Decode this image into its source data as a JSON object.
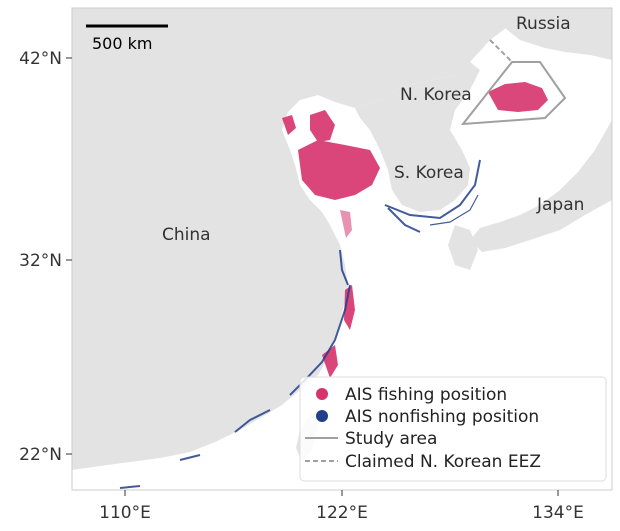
{
  "map": {
    "scale_bar_label": "500 km",
    "labels": {
      "russia": "Russia",
      "north_korea": "N. Korea",
      "south_korea": "S. Korea",
      "japan": "Japan",
      "china": "China"
    },
    "y_ticks": [
      "42°N",
      "32°N",
      "22°N"
    ],
    "x_ticks": [
      "110°E",
      "122°E",
      "134°E"
    ],
    "legend": {
      "placement": "bottom-right",
      "items": [
        {
          "label": "AIS fishing position",
          "marker": "dot",
          "color": "#d6336c"
        },
        {
          "label": "AIS nonfishing position",
          "marker": "dot",
          "color": "#223f8c"
        },
        {
          "label": "Study area",
          "marker": "solid-line",
          "color": "#a0a0a0"
        },
        {
          "label": "Claimed N. Korean EEZ",
          "marker": "dashed-line",
          "color": "#a0a0a0"
        }
      ]
    },
    "colors": {
      "land": "#e3e3e3",
      "sea": "#ffffff",
      "fishing": "#d6336c",
      "nonfishing": "#223f8c",
      "boundary": "#a0a0a0"
    }
  }
}
